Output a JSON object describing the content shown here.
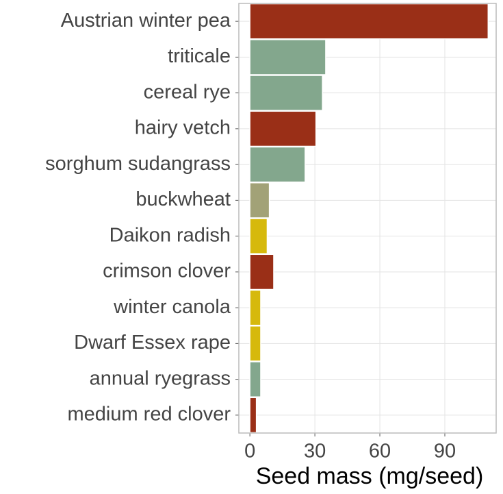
{
  "chart_data": {
    "type": "bar",
    "orientation": "horizontal",
    "categories": [
      "Austrian winter pea",
      "triticale",
      "cereal rye",
      "hairy vetch",
      "sorghum sudangrass",
      "buckwheat",
      "Daikon radish",
      "crimson clover",
      "winter canola",
      "Dwarf Essex rape",
      "annual ryegrass",
      "medium red clover"
    ],
    "values": [
      110,
      35,
      33.5,
      30.5,
      25.5,
      9,
      8,
      11,
      5,
      5,
      5,
      3
    ],
    "colors": [
      "#9a2f17",
      "#83a78d",
      "#83a78d",
      "#9a2f17",
      "#83a78d",
      "#a2a277",
      "#d6b90c",
      "#9a2f17",
      "#d6b90c",
      "#d6b90c",
      "#83a78d",
      "#9a2f17"
    ],
    "xlabel": "Seed mass (mg/seed)",
    "xlim": [
      -5.1,
      113.7
    ],
    "xticks": [
      0,
      30,
      60,
      90
    ],
    "grid": true
  }
}
